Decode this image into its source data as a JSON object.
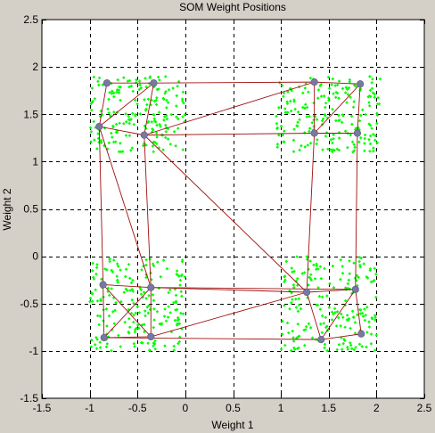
{
  "window": {
    "background": "#d4d0c8"
  },
  "chart_data": {
    "type": "scatter",
    "title": "SOM Weight Positions",
    "xlabel": "Weight 1",
    "ylabel": "Weight 2",
    "xlim": [
      -1.5,
      2.5
    ],
    "ylim": [
      -1.5,
      2.5
    ],
    "xticks": [
      -1.5,
      -1,
      -0.5,
      0,
      0.5,
      1,
      1.5,
      2,
      2.5
    ],
    "yticks": [
      -1.5,
      -1,
      -0.5,
      0,
      0.5,
      1,
      1.5,
      2,
      2.5
    ],
    "xtick_labels": [
      "-1.5",
      "-1",
      "-0.5",
      "0",
      "0.5",
      "1",
      "1.5",
      "2",
      "2.5"
    ],
    "ytick_labels": [
      "-1.5",
      "-1",
      "-0.5",
      "0",
      "0.5",
      "1",
      "1.5",
      "2",
      "2.5"
    ],
    "grid": true,
    "grid_style": "dashed",
    "colors": {
      "input_points": "#00ff00",
      "neurons": "#7878a0",
      "connections": "#a01010",
      "axes_background": "#ffffff",
      "grid": "#000000"
    },
    "input_clusters": [
      {
        "center": [
          -0.5,
          1.5
        ],
        "spread": [
          0.5,
          0.4
        ],
        "count": 200
      },
      {
        "center": [
          1.5,
          1.5
        ],
        "spread": [
          0.55,
          0.4
        ],
        "count": 200
      },
      {
        "center": [
          -0.5,
          -0.5
        ],
        "spread": [
          0.5,
          0.5
        ],
        "count": 200
      },
      {
        "center": [
          1.5,
          -0.5
        ],
        "spread": [
          0.5,
          0.5
        ],
        "count": 200
      }
    ],
    "neurons": [
      {
        "id": 1,
        "x": -0.82,
        "y": 1.83
      },
      {
        "id": 2,
        "x": -0.33,
        "y": 1.83
      },
      {
        "id": 3,
        "x": -0.9,
        "y": 1.37
      },
      {
        "id": 4,
        "x": -0.43,
        "y": 1.28
      },
      {
        "id": 5,
        "x": 1.35,
        "y": 1.84
      },
      {
        "id": 6,
        "x": 1.83,
        "y": 1.82
      },
      {
        "id": 7,
        "x": 1.35,
        "y": 1.3
      },
      {
        "id": 8,
        "x": 1.8,
        "y": 1.3
      },
      {
        "id": 9,
        "x": -0.86,
        "y": -0.3
      },
      {
        "id": 10,
        "x": -0.36,
        "y": -0.33
      },
      {
        "id": 11,
        "x": -0.85,
        "y": -0.86
      },
      {
        "id": 12,
        "x": -0.36,
        "y": -0.85
      },
      {
        "id": 13,
        "x": 1.27,
        "y": -0.38
      },
      {
        "id": 14,
        "x": 1.78,
        "y": -0.35
      },
      {
        "id": 15,
        "x": 1.42,
        "y": -0.88
      },
      {
        "id": 16,
        "x": 1.84,
        "y": -0.82
      }
    ],
    "connections": [
      [
        1,
        2
      ],
      [
        1,
        3
      ],
      [
        2,
        3
      ],
      [
        2,
        4
      ],
      [
        3,
        4
      ],
      [
        2,
        5
      ],
      [
        4,
        5
      ],
      [
        4,
        7
      ],
      [
        5,
        6
      ],
      [
        5,
        7
      ],
      [
        6,
        7
      ],
      [
        6,
        8
      ],
      [
        7,
        8
      ],
      [
        3,
        9
      ],
      [
        3,
        10
      ],
      [
        4,
        10
      ],
      [
        4,
        13
      ],
      [
        7,
        13
      ],
      [
        8,
        14
      ],
      [
        9,
        10
      ],
      [
        9,
        11
      ],
      [
        9,
        12
      ],
      [
        10,
        11
      ],
      [
        10,
        12
      ],
      [
        11,
        12
      ],
      [
        10,
        13
      ],
      [
        10,
        14
      ],
      [
        12,
        13
      ],
      [
        11,
        15
      ],
      [
        13,
        14
      ],
      [
        13,
        15
      ],
      [
        14,
        15
      ],
      [
        14,
        16
      ],
      [
        15,
        16
      ]
    ]
  }
}
